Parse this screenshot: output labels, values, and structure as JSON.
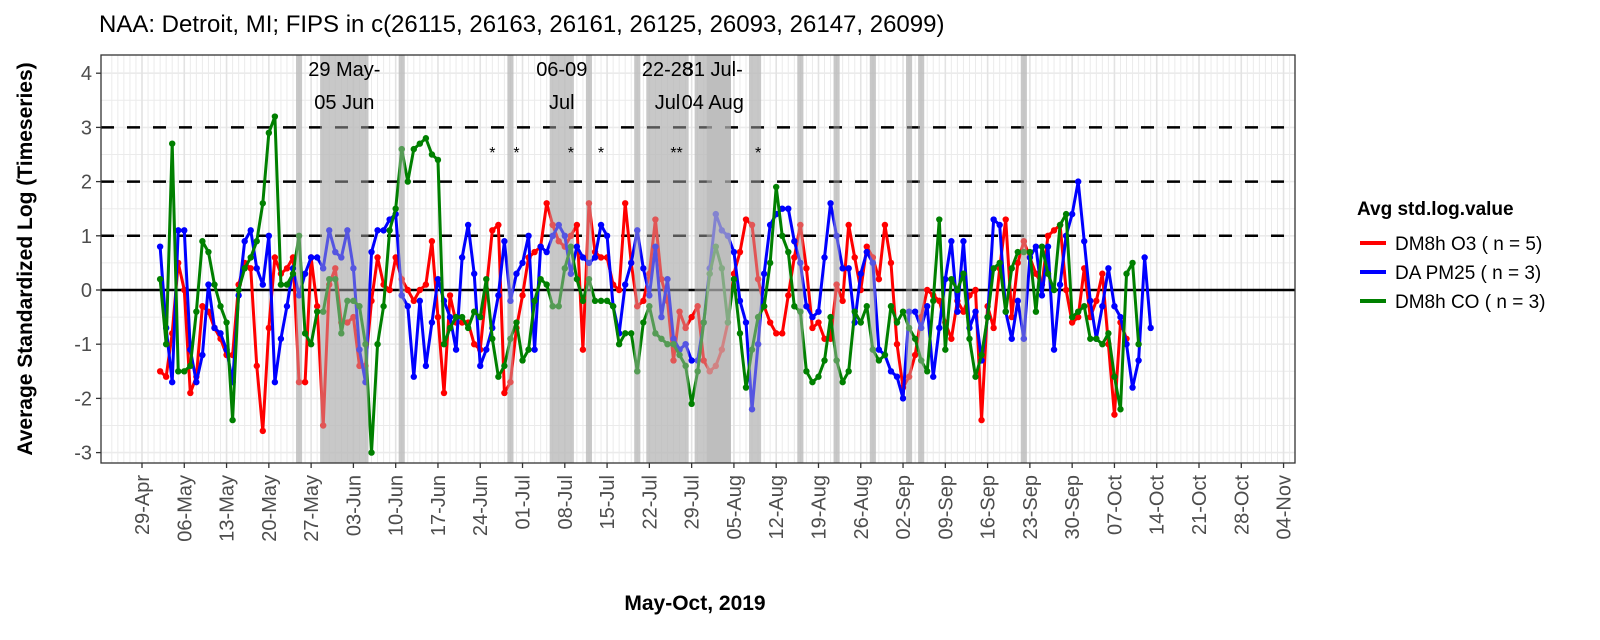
{
  "chart_data": {
    "type": "line",
    "title": "NAA: Detroit, MI; FIPS in c(26115, 26163, 26161, 26125, 26093, 26147, 26099)",
    "xlabel": "May-Oct, 2019",
    "ylabel": "Average Standardized Log (Timeseries)",
    "ylim": [
      -3.3,
      4.3
    ],
    "yticks": [
      "-3",
      "-2",
      "-1",
      "0",
      "1",
      "2",
      "3",
      "4"
    ],
    "ytick_values": [
      -3,
      -2,
      -1,
      0,
      1,
      2,
      3,
      4
    ],
    "x_start_date": "2019-04-29",
    "xlim_days": [
      -5.5,
      195
    ],
    "xticks": [
      "29-Apr",
      "06-May",
      "13-May",
      "20-May",
      "27-May",
      "03-Jun",
      "10-Jun",
      "17-Jun",
      "24-Jun",
      "01-Jul",
      "08-Jul",
      "15-Jul",
      "22-Jul",
      "29-Jul",
      "05-Aug",
      "12-Aug",
      "19-Aug",
      "26-Aug",
      "02-Sep",
      "09-Sep",
      "16-Sep",
      "23-Sep",
      "30-Sep",
      "07-Oct",
      "14-Oct",
      "21-Oct",
      "28-Oct",
      "04-Nov"
    ],
    "xtick_days": [
      0,
      7,
      14,
      21,
      28,
      35,
      42,
      49,
      56,
      63,
      70,
      77,
      84,
      91,
      98,
      105,
      112,
      119,
      126,
      133,
      140,
      147,
      154,
      161,
      168,
      175,
      182,
      189
    ],
    "grid": true,
    "hlines": {
      "solid": [
        0
      ],
      "dashed": [
        1,
        2,
        3
      ]
    },
    "x_day_start": 3,
    "legend": {
      "title": "Avg std.log.value",
      "position": "right"
    },
    "series": [
      {
        "name": "DM8h O3 ( n = 5)",
        "color": "#ff0000",
        "values": [
          -1.5,
          -1.6,
          -0.8,
          0.5,
          0.0,
          -1.9,
          -1.6,
          -0.3,
          -0.4,
          -0.7,
          -0.9,
          -1.2,
          -1.2,
          0.1,
          0.5,
          0.4,
          -1.4,
          -2.6,
          -0.7,
          0.6,
          0.3,
          0.4,
          0.6,
          -1.7,
          -1.7,
          0.6,
          -0.3,
          -2.5,
          0.1,
          0.4,
          -0.6,
          -0.6,
          -0.5,
          -1.4,
          -1.4,
          -0.2,
          0.6,
          0.1,
          0.0,
          0.6,
          0.2,
          0.0,
          -0.2,
          0.0,
          0.1,
          0.9,
          -0.5,
          -1.9,
          -0.1,
          -0.6,
          -0.6,
          -0.6,
          -1.0,
          -1.1,
          0.0,
          1.1,
          1.2,
          -1.9,
          -1.7,
          -0.7,
          -0.1,
          0.6,
          0.7,
          0.8,
          1.6,
          1.2,
          0.9,
          0.8,
          1.0,
          1.2,
          -1.1,
          1.6,
          0.7,
          0.6,
          0.6,
          0.1,
          0.0,
          1.6,
          0.5,
          -0.3,
          -0.2,
          0.3,
          1.3,
          0.2,
          -0.2,
          -1.3,
          -0.4,
          -0.7,
          -0.5,
          -0.3,
          -1.3,
          -1.5,
          -1.4,
          -1.1,
          -0.6,
          0.3,
          0.7,
          1.3,
          1.2,
          0.2,
          -0.3,
          -0.6,
          -0.8,
          -0.8,
          -0.1,
          0.6,
          1.2,
          0.4,
          -0.7,
          -0.6,
          -0.9,
          -0.9,
          0.1,
          -0.2,
          1.2,
          0.6,
          0.0,
          0.8,
          0.6,
          0.2,
          1.2,
          0.5,
          -1.0,
          -1.8,
          -1.6,
          -1.2,
          -0.5,
          0.0,
          -0.1,
          -0.2,
          -0.6,
          -0.9,
          -0.2,
          -0.4,
          -0.1,
          0.0,
          -2.4,
          -0.3,
          -0.7,
          0.4,
          1.3,
          -0.5,
          0.5,
          0.9,
          0.6,
          0.3,
          0.1,
          1.0,
          1.1,
          1.2,
          0.0,
          -0.6,
          -0.5,
          0.4,
          -0.5,
          -0.2,
          0.3,
          -1.0,
          -2.3,
          -0.6,
          -0.9
        ]
      },
      {
        "name": "DA PM25 ( n = 3)",
        "color": "#0000ff",
        "values": [
          0.8,
          -0.7,
          -1.7,
          1.1,
          1.1,
          -1.1,
          -1.7,
          -1.2,
          0.1,
          -0.7,
          -0.8,
          -1.1,
          -1.7,
          -0.1,
          0.9,
          1.1,
          0.4,
          0.1,
          1.0,
          -1.7,
          -0.9,
          -0.3,
          0.4,
          -0.1,
          0.3,
          0.6,
          0.6,
          0.4,
          1.1,
          0.7,
          0.6,
          1.1,
          0.4,
          -1.1,
          -1.7,
          0.7,
          1.1,
          1.1,
          1.3,
          1.4,
          -0.1,
          -0.3,
          -1.6,
          -0.2,
          -1.4,
          -0.6,
          0.2,
          -0.2,
          -0.5,
          -1.1,
          0.6,
          1.2,
          0.3,
          -1.4,
          -1.1,
          -0.7,
          -0.1,
          0.9,
          -0.2,
          0.3,
          0.5,
          1.0,
          -1.1,
          0.8,
          0.7,
          1.0,
          1.2,
          1.0,
          0.3,
          0.8,
          0.6,
          0.5,
          0.6,
          1.2,
          1.0,
          -0.3,
          -0.8,
          0.1,
          0.5,
          1.1,
          0.4,
          -0.1,
          0.8,
          -0.5,
          0.2,
          -0.9,
          -1.1,
          -1.0,
          -1.3,
          -1.3,
          -0.6,
          0.4,
          1.4,
          1.1,
          1.0,
          0.7,
          -0.2,
          -0.6,
          -2.2,
          -1.0,
          0.3,
          1.2,
          1.4,
          1.5,
          1.5,
          0.9,
          0.5,
          -0.3,
          -0.5,
          -0.4,
          0.6,
          1.6,
          1.0,
          0.4,
          0.4,
          -0.6,
          0.3,
          0.7,
          0.5,
          -1.1,
          -1.2,
          -1.5,
          -1.6,
          -2.0,
          -0.4,
          -0.4,
          -0.7,
          -0.3,
          -1.6,
          -0.7,
          0.2,
          0.9,
          -0.4,
          0.9,
          -0.7,
          -0.4,
          -1.3,
          -0.5,
          1.3,
          1.2,
          -0.4,
          -0.9,
          -0.2,
          -0.9,
          0.6,
          0.8,
          -0.1,
          0.8,
          -1.1,
          0.1,
          1.0,
          1.4,
          2.0,
          0.9,
          -0.2,
          -0.9,
          -0.3,
          0.4,
          -0.3,
          -0.5,
          -1.0,
          -1.8,
          -1.3,
          0.6,
          -0.7
        ]
      },
      {
        "name": "DM8h CO ( n = 3)",
        "color": "#008000",
        "values": [
          0.2,
          -1.0,
          2.7,
          -1.5,
          -1.5,
          -1.4,
          -0.4,
          0.9,
          0.7,
          0.1,
          -0.3,
          -0.6,
          -2.4,
          0.0,
          0.4,
          0.6,
          0.9,
          1.6,
          2.9,
          3.2,
          0.1,
          0.1,
          0.3,
          1.0,
          -0.8,
          -1.0,
          -0.4,
          -0.4,
          0.2,
          0.2,
          -0.8,
          -0.2,
          -0.2,
          -0.3,
          -1.0,
          -3.0,
          -1.0,
          -0.3,
          1.1,
          1.5,
          2.6,
          2.0,
          2.6,
          2.7,
          2.8,
          2.5,
          2.4,
          -1.0,
          -0.7,
          -0.5,
          -0.5,
          -0.7,
          -0.4,
          -0.5,
          0.2,
          -0.9,
          -1.6,
          -1.4,
          -0.9,
          -0.6,
          -1.3,
          -1.1,
          -0.2,
          0.2,
          0.1,
          -0.3,
          -0.3,
          0.4,
          0.8,
          0.2,
          -0.2,
          0.2,
          -0.2,
          -0.2,
          -0.2,
          -0.3,
          -1.0,
          -0.8,
          -0.8,
          -1.5,
          -0.6,
          -0.3,
          -0.8,
          -0.9,
          -1.0,
          -1.0,
          -1.2,
          -1.4,
          -2.1,
          -1.5,
          -0.6,
          0.3,
          0.8,
          0.4,
          -0.6,
          0.2,
          -0.8,
          -1.8,
          -1.1,
          -0.5,
          -0.3,
          0.5,
          1.9,
          1.0,
          0.7,
          -0.3,
          -0.4,
          -1.5,
          -1.7,
          -1.6,
          -1.3,
          -0.5,
          -1.3,
          -1.7,
          -1.5,
          -0.4,
          -0.6,
          -0.3,
          -1.1,
          -1.3,
          -1.2,
          -0.3,
          -0.6,
          -0.4,
          -0.7,
          -0.9,
          -1.3,
          -1.5,
          -0.2,
          1.3,
          -1.1,
          0.2,
          0.0,
          0.3,
          -0.9,
          -1.6,
          -1.2,
          -0.5,
          0.4,
          0.5,
          -0.4,
          0.4,
          0.7,
          0.7,
          0.7,
          -0.4,
          0.8,
          0.3,
          0.0,
          1.2,
          1.4,
          -0.5,
          -0.4,
          -0.3,
          -0.9,
          -0.9,
          -1.0,
          -0.8,
          -1.6,
          -2.2,
          0.3,
          0.5,
          -1.0
        ]
      }
    ],
    "shaded_bands": [
      {
        "start_day": 25.5,
        "end_day": 26.5,
        "label": ""
      },
      {
        "start_day": 29.5,
        "end_day": 37.5,
        "label": "29 May-\n05 Jun"
      },
      {
        "start_day": 42.5,
        "end_day": 43.5,
        "label": ""
      },
      {
        "start_day": 60.5,
        "end_day": 61.5,
        "label": ""
      },
      {
        "start_day": 67.5,
        "end_day": 71.5,
        "label": "06-09\nJul"
      },
      {
        "start_day": 73.5,
        "end_day": 74.5,
        "label": ""
      },
      {
        "start_day": 81.5,
        "end_day": 82.5,
        "label": ""
      },
      {
        "start_day": 83.5,
        "end_day": 90.5,
        "label": "22-28\nJul"
      },
      {
        "start_day": 91.5,
        "end_day": 97.5,
        "label": "31 Jul-\n04 Aug"
      },
      {
        "start_day": 93.5,
        "end_day": 97.5,
        "label": ""
      },
      {
        "start_day": 100.5,
        "end_day": 102.5,
        "label": ""
      },
      {
        "start_day": 108.5,
        "end_day": 109.5,
        "label": ""
      },
      {
        "start_day": 114.5,
        "end_day": 115.5,
        "label": ""
      },
      {
        "start_day": 120.5,
        "end_day": 121.5,
        "label": ""
      },
      {
        "start_day": 126.5,
        "end_day": 127.5,
        "label": ""
      },
      {
        "start_day": 128.5,
        "end_day": 129.5,
        "label": ""
      },
      {
        "start_day": 145.5,
        "end_day": 146.5,
        "label": ""
      }
    ],
    "annotations": [
      {
        "day": 58,
        "text": "*"
      },
      {
        "day": 62,
        "text": "*"
      },
      {
        "day": 71,
        "text": "*"
      },
      {
        "day": 76,
        "text": "*"
      },
      {
        "day": 88,
        "text": "*"
      },
      {
        "day": 89,
        "text": "*"
      },
      {
        "day": 102,
        "text": "*"
      }
    ]
  }
}
